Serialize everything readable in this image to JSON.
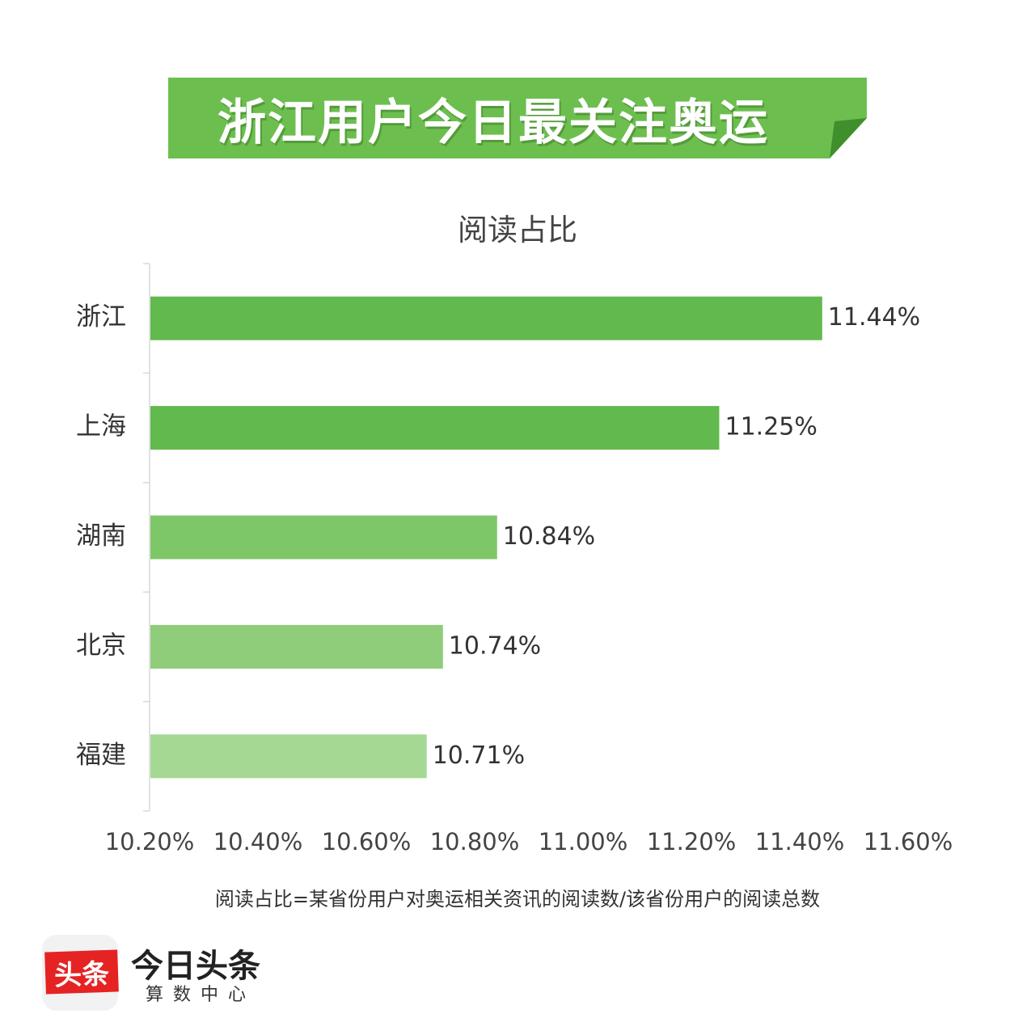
{
  "banner": {
    "title": "浙江用户今日最关注奥运"
  },
  "colors": {
    "banner": "#6cbf4f",
    "bars": [
      "#62b94d",
      "#62b94d",
      "#7ec768",
      "#8fcd7b",
      "#a4d893"
    ]
  },
  "chart_data": {
    "type": "bar",
    "orientation": "horizontal",
    "title": "阅读占比",
    "categories": [
      "浙江",
      "上海",
      "湖南",
      "北京",
      "福建"
    ],
    "values": [
      11.44,
      11.25,
      10.84,
      10.74,
      10.71
    ],
    "data_labels": [
      "11.44%",
      "11.25%",
      "10.84%",
      "10.74%",
      "10.71%"
    ],
    "xlim": [
      10.2,
      11.6
    ],
    "x_ticks": [
      "10.20%",
      "10.40%",
      "10.60%",
      "10.80%",
      "11.00%",
      "11.20%",
      "11.40%",
      "11.60%"
    ],
    "grid": false,
    "legend": "none"
  },
  "footnote": "阅读占比=某省份用户对奥运相关资讯的阅读数/该省份用户的阅读总数",
  "logo": {
    "icon_text": "头条",
    "name": "今日头条",
    "subtitle": "算数中心"
  }
}
